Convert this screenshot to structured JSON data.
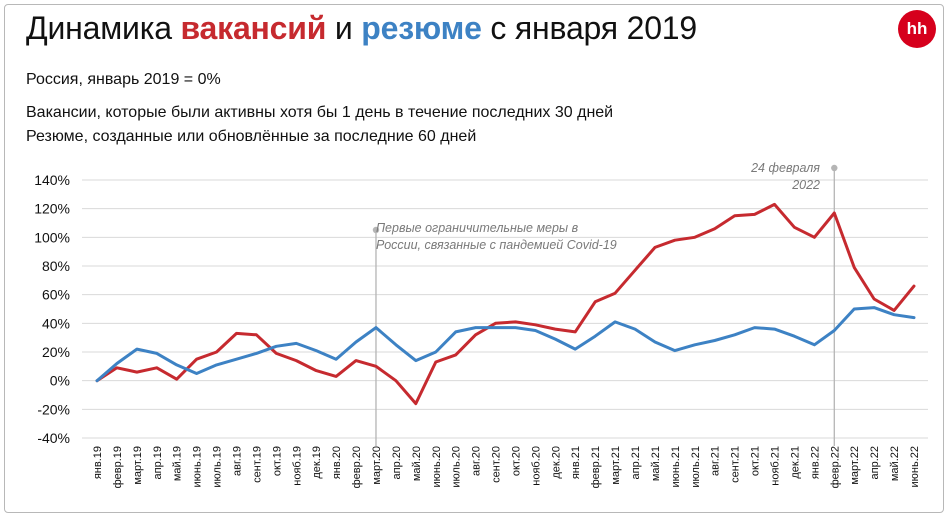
{
  "title": {
    "part1": "Динамика ",
    "part2": "вакансий",
    "part3": " и ",
    "part4": "резюме",
    "part5": " с января 2019"
  },
  "logo_text": "hh",
  "subtitle": "Россия, январь 2019 = 0%",
  "legend": {
    "vacancies": "Вакансии, которые были активны хотя бы 1 день в течение последних 30 дней",
    "resumes": "Резюме, созданные или обновлённые за последние 60 дней"
  },
  "annotations": {
    "covid": "Первые ограничительные меры в России, связанные с пандемией Covid-19",
    "feb_line1": "24 февраля",
    "feb_line2": "2022"
  },
  "colors": {
    "vacancies": "#c62a2f",
    "resumes": "#3d82c4",
    "grid": "#d9d9d9",
    "marker": "#b5b5b5"
  },
  "chart_data": {
    "type": "line",
    "ylim": [
      -40,
      140
    ],
    "yticks": [
      -40,
      -20,
      0,
      20,
      40,
      60,
      80,
      100,
      120,
      140
    ],
    "ytick_labels": [
      "-40%",
      "-20%",
      "0%",
      "20%",
      "40%",
      "60%",
      "80%",
      "100%",
      "120%",
      "140%"
    ],
    "categories": [
      "янв.19",
      "февр.19",
      "март.19",
      "апр.19",
      "май.19",
      "июнь.19",
      "июль.19",
      "авг.19",
      "сент.19",
      "окт.19",
      "нояб.19",
      "дек.19",
      "янв.20",
      "февр.20",
      "март.20",
      "апр.20",
      "май.20",
      "июнь.20",
      "июль.20",
      "авг.20",
      "сент.20",
      "окт.20",
      "нояб.20",
      "дек.20",
      "янв.21",
      "февр.21",
      "март.21",
      "апр.21",
      "май.21",
      "июнь.21",
      "июль.21",
      "авг.21",
      "сент.21",
      "окт.21",
      "нояб.21",
      "дек.21",
      "янв.22",
      "февр.22",
      "март.22",
      "апр.22",
      "май.22",
      "июнь.22"
    ],
    "series": [
      {
        "name": "Вакансии",
        "color_key": "vacancies",
        "values": [
          0,
          9,
          6,
          9,
          1,
          15,
          20,
          33,
          32,
          19,
          14,
          7,
          3,
          14,
          10,
          0,
          -16,
          13,
          18,
          32,
          40,
          41,
          39,
          36,
          34,
          55,
          61,
          77,
          93,
          98,
          100,
          106,
          115,
          116,
          123,
          107,
          100,
          117,
          79,
          57,
          49,
          66
        ]
      },
      {
        "name": "Резюме",
        "color_key": "resumes",
        "values": [
          0,
          12,
          22,
          19,
          11,
          5,
          11,
          15,
          19,
          24,
          26,
          21,
          15,
          27,
          37,
          25,
          14,
          20,
          34,
          37,
          37,
          37,
          35,
          29,
          22,
          31,
          41,
          36,
          27,
          21,
          25,
          28,
          32,
          37,
          36,
          31,
          25,
          35,
          50,
          51,
          46,
          44
        ]
      }
    ],
    "markers": [
      {
        "category_index": 14,
        "label_key": "covid"
      },
      {
        "category_index": 37,
        "label_key": "feb"
      }
    ]
  }
}
